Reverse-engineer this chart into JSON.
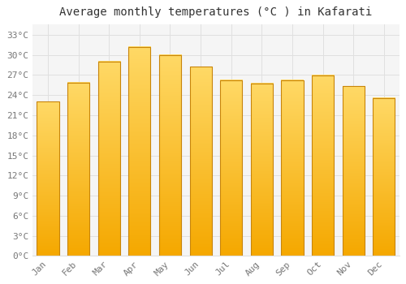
{
  "title": "Average monthly temperatures (°C ) in Kafarati",
  "months": [
    "Jan",
    "Feb",
    "Mar",
    "Apr",
    "May",
    "Jun",
    "Jul",
    "Aug",
    "Sep",
    "Oct",
    "Nov",
    "Dec"
  ],
  "values": [
    23.0,
    25.8,
    29.0,
    31.2,
    30.0,
    28.2,
    26.2,
    25.7,
    26.2,
    26.9,
    25.3,
    23.5
  ],
  "bar_color_top": "#F5A800",
  "bar_color_bottom": "#FFD966",
  "bar_edge_color": "#C8850A",
  "yticks": [
    0,
    3,
    6,
    9,
    12,
    15,
    18,
    21,
    24,
    27,
    30,
    33
  ],
  "ytick_labels": [
    "0°C",
    "3°C",
    "6°C",
    "9°C",
    "12°C",
    "15°C",
    "18°C",
    "21°C",
    "24°C",
    "27°C",
    "30°C",
    "33°C"
  ],
  "ylim": [
    0,
    34.5
  ],
  "background_color": "#ffffff",
  "plot_bg_color": "#f5f5f5",
  "grid_color": "#e0e0e0",
  "title_fontsize": 10,
  "tick_fontsize": 8,
  "font_color": "#777777",
  "bar_width": 0.72
}
